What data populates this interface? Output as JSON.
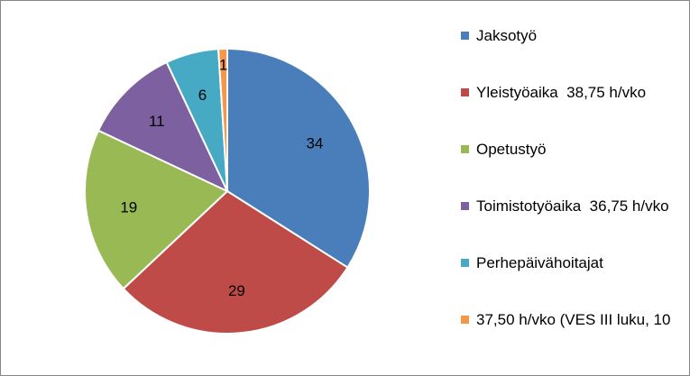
{
  "chart_data": {
    "type": "pie",
    "title": "",
    "slices": [
      {
        "label": "Jaksotyö",
        "value": 34,
        "color": "#4a7ebb"
      },
      {
        "label": "Yleistyöaika  38,75 h/vko",
        "value": 29,
        "color": "#be4b48"
      },
      {
        "label": "Opetustyö",
        "value": 19,
        "color": "#98b954"
      },
      {
        "label": "Toimistotyöaika  36,75 h/vko",
        "value": 11,
        "color": "#7d60a0"
      },
      {
        "label": "Perhepäivähoitajat",
        "value": 6,
        "color": "#46aac5"
      },
      {
        "label": "37,50 h/vko (VES III luku, 10",
        "value": 1,
        "color": "#f79646"
      }
    ],
    "legend_position": "right",
    "start_angle_deg": 0,
    "direction": "clockwise"
  }
}
